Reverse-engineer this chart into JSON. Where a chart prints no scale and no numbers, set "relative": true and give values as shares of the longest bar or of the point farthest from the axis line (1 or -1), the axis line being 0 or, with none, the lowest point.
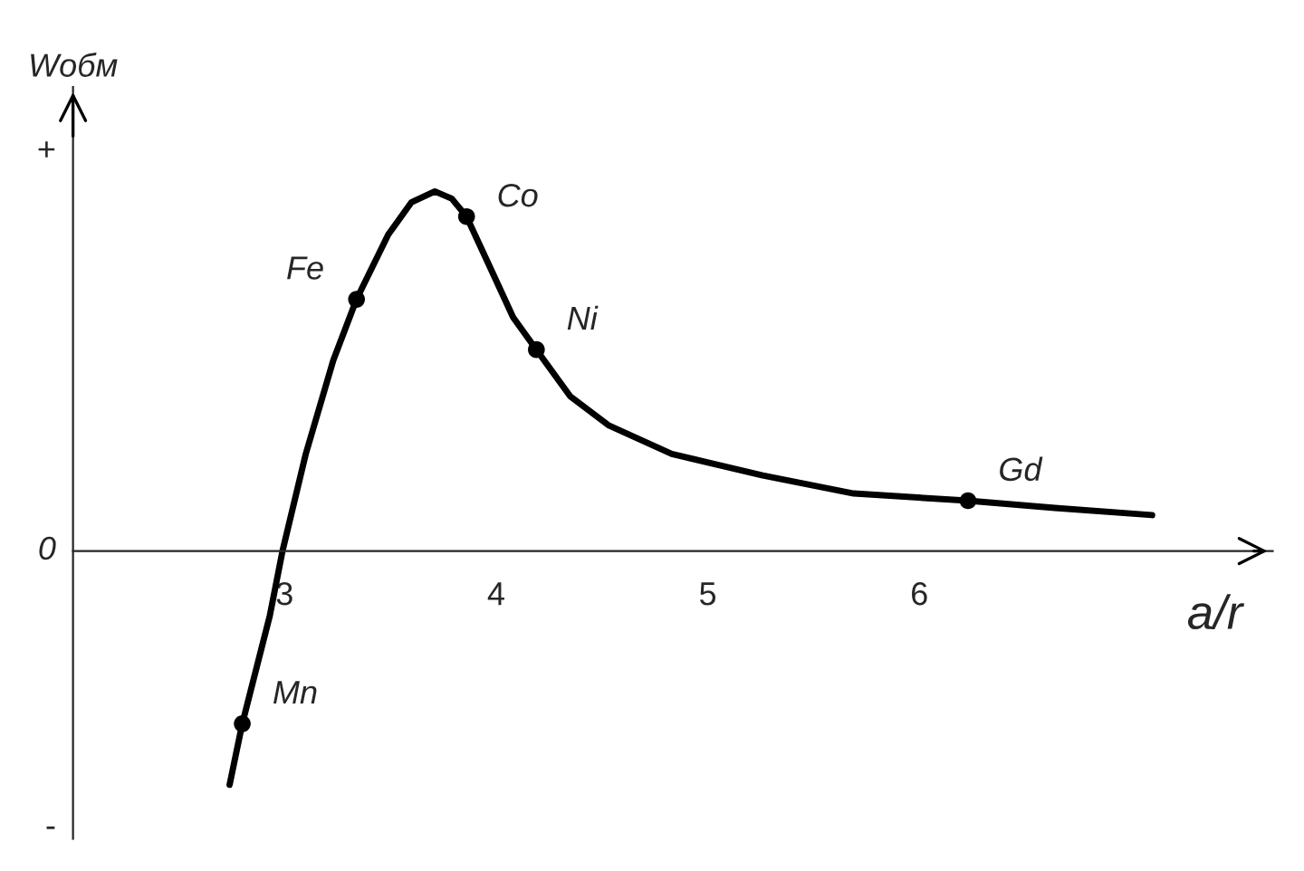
{
  "chart_data": {
    "type": "line",
    "relative": true,
    "xlabel": "a/r",
    "ylabel": "Wобм",
    "xlim": [
      2,
      7.67
    ],
    "xticks": [
      3,
      4,
      5,
      6
    ],
    "grid": false,
    "series": [
      {
        "color": "#000000",
        "marker": "none",
        "line_style": "solid",
        "x": [
          2.74,
          2.8,
          2.93,
          2.99,
          3.1,
          3.23,
          3.34,
          3.49,
          3.6,
          3.71,
          3.79,
          3.86,
          3.97,
          4.08,
          4.19,
          4.35,
          4.53,
          4.83,
          5.26,
          5.69,
          6.23,
          6.64,
          7.1
        ],
        "values": [
          -0.65,
          -0.48,
          -0.18,
          0,
          0.27,
          0.53,
          0.7,
          0.88,
          0.97,
          1.0,
          0.98,
          0.93,
          0.79,
          0.65,
          0.56,
          0.43,
          0.35,
          0.27,
          0.21,
          0.16,
          0.14,
          0.12,
          0.1
        ]
      },
      {
        "type": "scatter",
        "color": "#000000",
        "marker": "circle",
        "x": [
          2.8,
          3.34,
          3.86,
          4.19,
          6.23
        ],
        "values": [
          -0.48,
          0.7,
          0.93,
          0.56,
          0.14
        ]
      }
    ],
    "annotations": [
      {
        "text": "Mn",
        "x": 2.8,
        "y": -0.48
      },
      {
        "text": "Fe",
        "x": 3.34,
        "y": 0.7
      },
      {
        "text": "Co",
        "x": 3.86,
        "y": 0.93
      },
      {
        "text": "Ni",
        "x": 4.19,
        "y": 0.56
      },
      {
        "text": "Gd",
        "x": 6.23,
        "y": 0.14
      },
      "+",
      "0",
      "-"
    ]
  }
}
